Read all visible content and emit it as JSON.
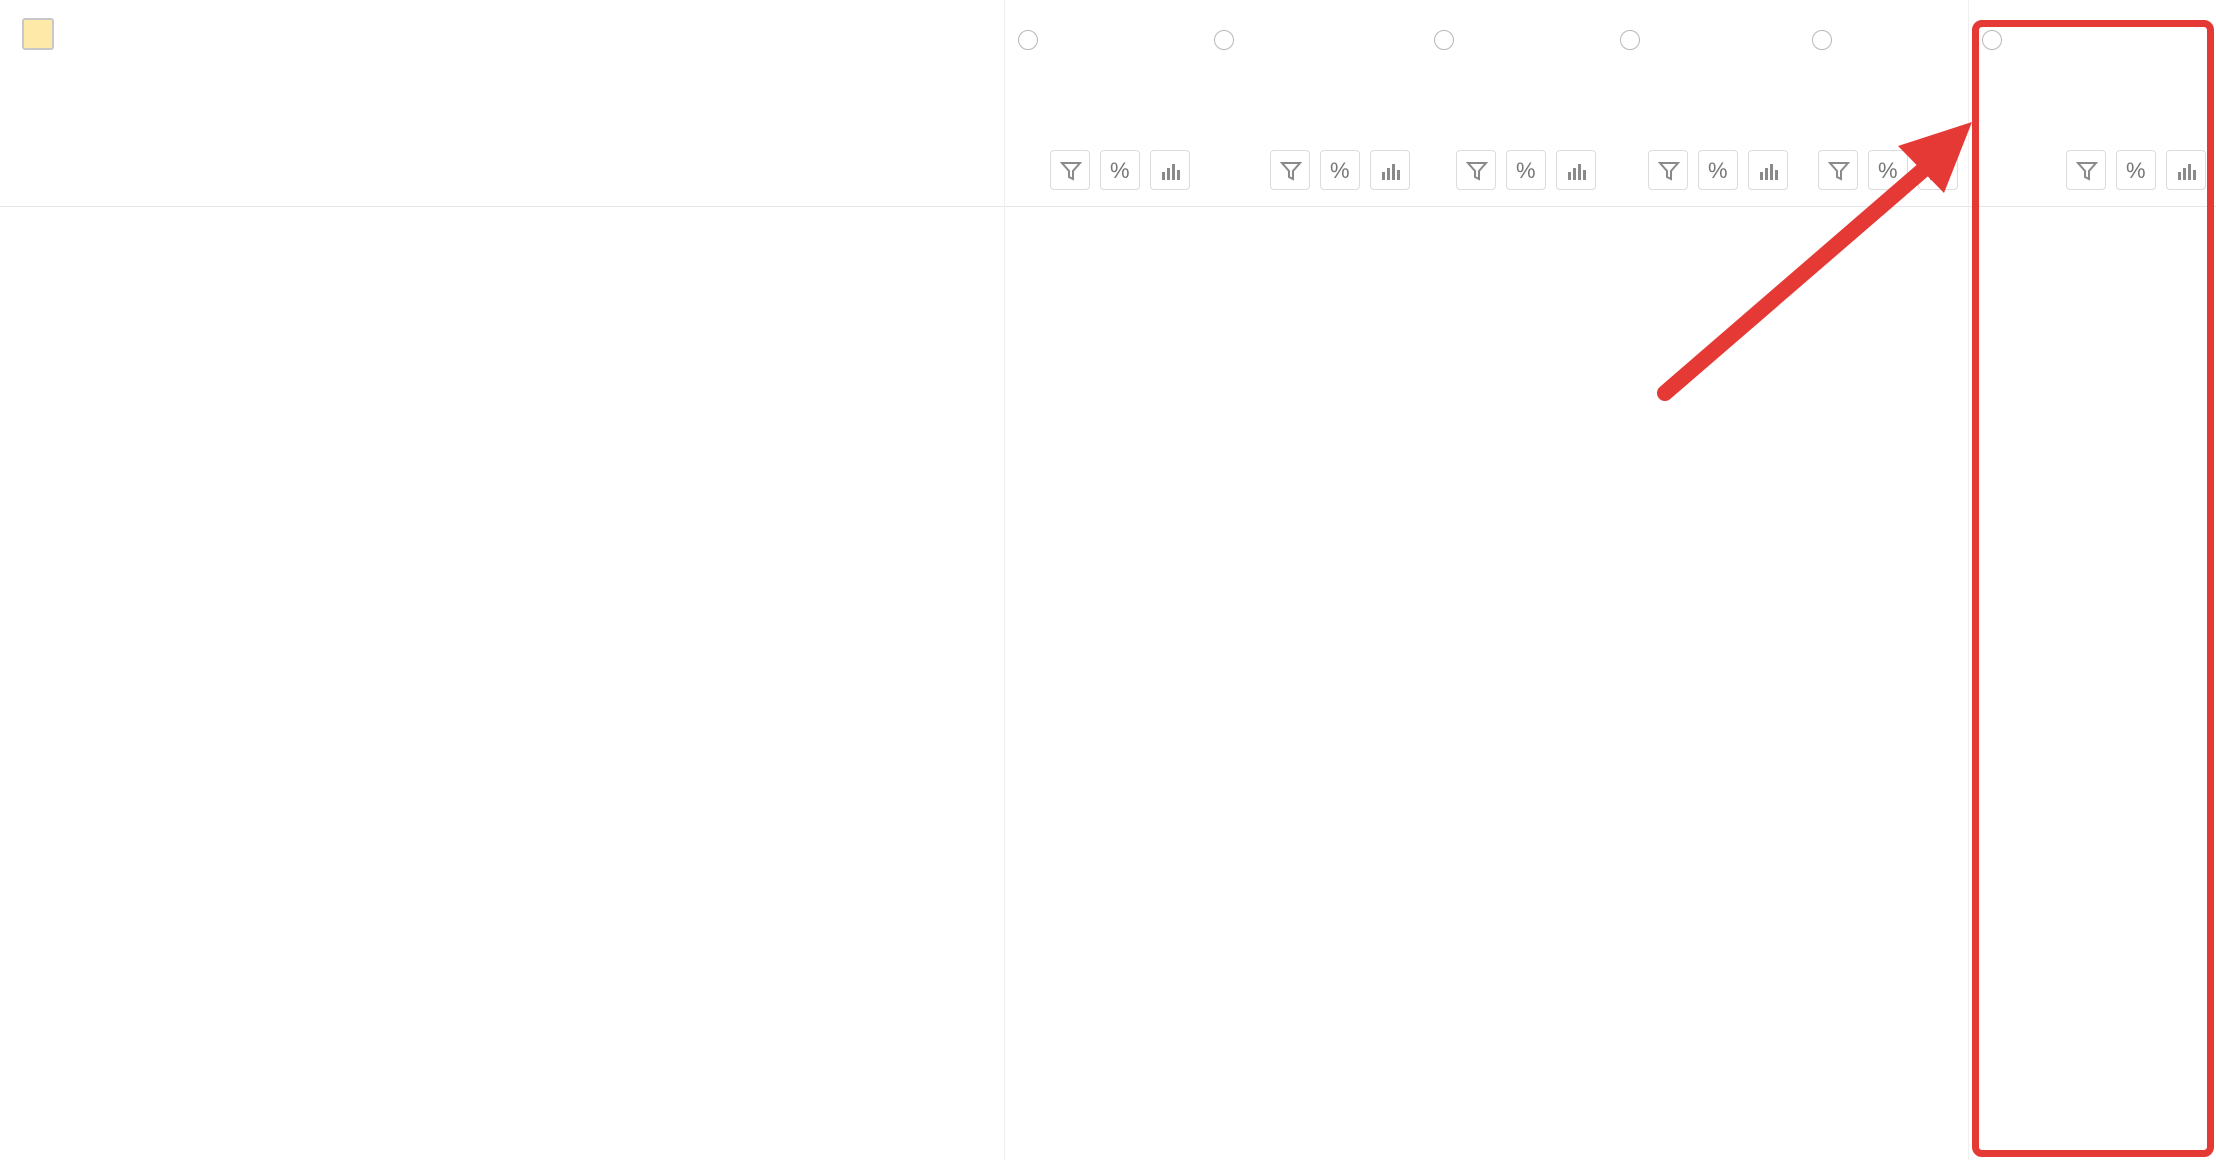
{
  "header": {
    "title": "",
    "columns": [
      {
        "key": "visits",
        "title": "",
        "subtitle": "",
        "sorted": false
      },
      {
        "key": "visitors",
        "title": "",
        "subtitle": "",
        "sorted": false
      },
      {
        "key": "bounces",
        "title": "",
        "subtitle": "",
        "sorted": false
      },
      {
        "key": "depth",
        "title": "",
        "subtitle": "",
        "sorted": false
      },
      {
        "key": "time",
        "title": "",
        "subtitle": "",
        "sorted": false
      },
      {
        "key": "goals",
        "title": "",
        "subtitle": "",
        "sorted": false
      }
    ],
    "tool_icons": {
      "filter": "filter-icon",
      "percent": "percent-icon",
      "chart": "bar-chart-icon"
    }
  },
  "rows": [],
  "colors": {
    "accent_yellow": "",
    "bar_bg": "",
    "bar_fill": "",
    "highlight_red": ""
  }
}
